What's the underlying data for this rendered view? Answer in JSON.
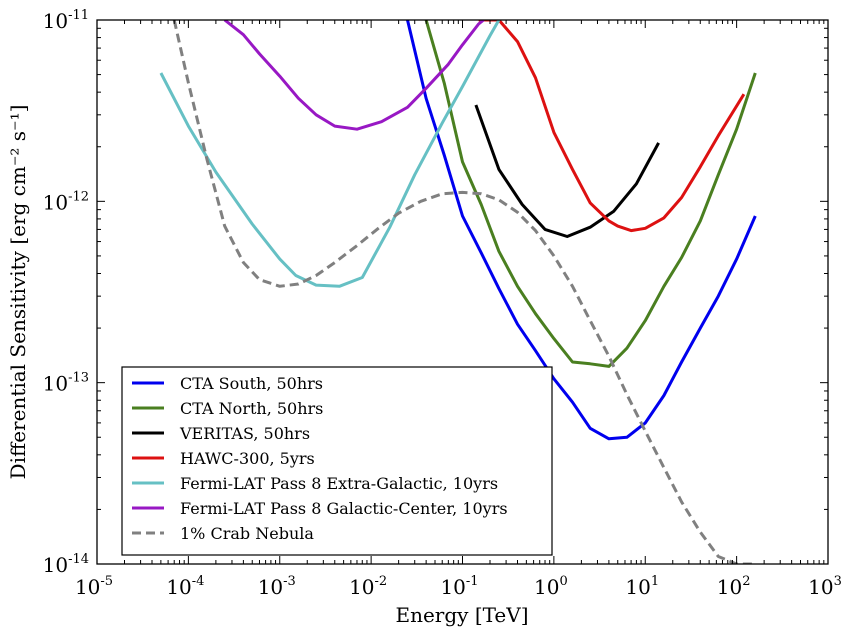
{
  "chart_data": {
    "type": "line",
    "title": "",
    "xlabel": "Energy [TeV]",
    "ylabel": "Differential Sensitivity [erg cm⁻² s⁻¹]",
    "xscale": "log",
    "yscale": "log",
    "xlim": [
      1e-05,
      1000
    ],
    "ylim": [
      1e-14,
      1e-11
    ],
    "grid": false,
    "legend_position": "lower-left",
    "x_ticks": [
      {
        "value": 1e-05,
        "base": "10",
        "exp": "-5"
      },
      {
        "value": 0.0001,
        "base": "10",
        "exp": "-4"
      },
      {
        "value": 0.001,
        "base": "10",
        "exp": "-3"
      },
      {
        "value": 0.01,
        "base": "10",
        "exp": "-2"
      },
      {
        "value": 0.1,
        "base": "10",
        "exp": "-1"
      },
      {
        "value": 1,
        "base": "10",
        "exp": "0"
      },
      {
        "value": 10,
        "base": "10",
        "exp": "1"
      },
      {
        "value": 100,
        "base": "10",
        "exp": "2"
      },
      {
        "value": 1000,
        "base": "10",
        "exp": "3"
      }
    ],
    "y_ticks": [
      {
        "value": 1e-14,
        "base": "10",
        "exp": "-14"
      },
      {
        "value": 1e-13,
        "base": "10",
        "exp": "-13"
      },
      {
        "value": 1e-12,
        "base": "10",
        "exp": "-12"
      },
      {
        "value": 1e-11,
        "base": "10",
        "exp": "-11"
      }
    ],
    "series": [
      {
        "name": "CTA South, 50hrs",
        "color": "#0000ee",
        "dash": "solid",
        "x": [
          0.025,
          0.04,
          0.063,
          0.1,
          0.16,
          0.25,
          0.4,
          0.63,
          1.0,
          1.6,
          2.5,
          4.0,
          6.3,
          10,
          16,
          25,
          40,
          63,
          100,
          160
        ],
        "y": [
          1e-11,
          3.7e-12,
          1.8e-12,
          8.3e-13,
          5.2e-13,
          3.3e-13,
          2.1e-13,
          1.5e-13,
          1.05e-13,
          7.8e-14,
          5.6e-14,
          4.9e-14,
          5e-14,
          6e-14,
          8.5e-14,
          1.3e-13,
          2e-13,
          3e-13,
          4.8e-13,
          8.3e-13
        ]
      },
      {
        "name": "CTA North, 50hrs",
        "color": "#4a7f20",
        "dash": "solid",
        "x": [
          0.04,
          0.063,
          0.1,
          0.16,
          0.25,
          0.4,
          0.63,
          1.0,
          1.6,
          2.5,
          4.0,
          6.3,
          10,
          16,
          25,
          40,
          63,
          100,
          160
        ],
        "y": [
          1e-11,
          4.5e-12,
          1.65e-12,
          9.6e-13,
          5.3e-13,
          3.4e-13,
          2.4e-13,
          1.75e-13,
          1.3e-13,
          1.27e-13,
          1.23e-13,
          1.55e-13,
          2.2e-13,
          3.4e-13,
          4.9e-13,
          7.8e-13,
          1.4e-12,
          2.5e-12,
          5.1e-12
        ]
      },
      {
        "name": "VERITAS, 50hrs",
        "color": "#000000",
        "dash": "solid",
        "x": [
          0.14,
          0.25,
          0.45,
          0.8,
          1.4,
          2.5,
          4.5,
          8.0,
          14
        ],
        "y": [
          3.4e-12,
          1.5e-12,
          9.6e-13,
          7e-13,
          6.4e-13,
          7.2e-13,
          8.8e-13,
          1.25e-12,
          2.1e-12
        ]
      },
      {
        "name": "HAWC-300, 5yrs",
        "color": "#dd1111",
        "dash": "solid",
        "x": [
          0.15,
          0.25,
          0.4,
          0.63,
          1.0,
          1.6,
          2.5,
          4.0,
          5.0,
          7.0,
          10,
          16,
          25,
          40,
          63,
          120
        ],
        "y": [
          1e-11,
          1e-11,
          7.6e-12,
          4.8e-12,
          2.4e-12,
          1.5e-12,
          9.8e-13,
          7.8e-13,
          7.3e-13,
          6.9e-13,
          7.1e-13,
          8.1e-13,
          1.05e-12,
          1.55e-12,
          2.3e-12,
          3.9e-12
        ]
      },
      {
        "name": "Fermi-LAT Pass 8 Extra-Galactic, 10yrs",
        "color": "#66c0c4",
        "dash": "solid",
        "x": [
          5e-05,
          0.0001,
          0.0002,
          0.0005,
          0.001,
          0.0015,
          0.0025,
          0.0045,
          0.008,
          0.016,
          0.03,
          0.06,
          0.1,
          0.2,
          0.25
        ],
        "y": [
          5.1e-12,
          2.6e-12,
          1.45e-12,
          7.5e-13,
          4.8e-13,
          3.9e-13,
          3.45e-13,
          3.4e-13,
          3.8e-13,
          7.2e-13,
          1.4e-12,
          2.7e-12,
          4.3e-12,
          8.2e-12,
          1e-11
        ]
      },
      {
        "name": "Fermi-LAT Pass 8 Galactic-Center, 10yrs",
        "color": "#9818c4",
        "dash": "solid",
        "x": [
          0.00025,
          0.0004,
          0.0006,
          0.001,
          0.0016,
          0.0025,
          0.004,
          0.007,
          0.013,
          0.025,
          0.04,
          0.07,
          0.1,
          0.15,
          0.17
        ],
        "y": [
          1e-11,
          8.3e-12,
          6.5e-12,
          4.9e-12,
          3.7e-12,
          3e-12,
          2.6e-12,
          2.5e-12,
          2.75e-12,
          3.3e-12,
          4.2e-12,
          5.7e-12,
          7.3e-12,
          9.5e-12,
          1e-11
        ]
      },
      {
        "name": "1% Crab Nebula",
        "color": "#808080",
        "dash": "dashed",
        "x": [
          7e-05,
          0.0001,
          0.00016,
          0.00025,
          0.0004,
          0.0006,
          0.001,
          0.0016,
          0.0025,
          0.004,
          0.007,
          0.012,
          0.02,
          0.035,
          0.06,
          0.1,
          0.16,
          0.25,
          0.4,
          0.63,
          1.0,
          1.6,
          2.5,
          4.0,
          6.3,
          10,
          16,
          25,
          40,
          63,
          100,
          160
        ],
        "y": [
          1e-11,
          4.5e-12,
          1.7e-12,
          7.3e-13,
          4.6e-13,
          3.7e-13,
          3.4e-13,
          3.5e-13,
          3.9e-13,
          4.6e-13,
          5.7e-13,
          7.1e-13,
          8.6e-13,
          1e-12,
          1.1e-12,
          1.12e-12,
          1.1e-12,
          1.02e-12,
          8.7e-13,
          6.9e-13,
          5e-13,
          3.4e-13,
          2.2e-13,
          1.4e-13,
          8.6e-14,
          5.4e-14,
          3.4e-14,
          2.2e-14,
          1.5e-14,
          1.1e-14,
          1e-14,
          1e-14
        ]
      }
    ]
  }
}
